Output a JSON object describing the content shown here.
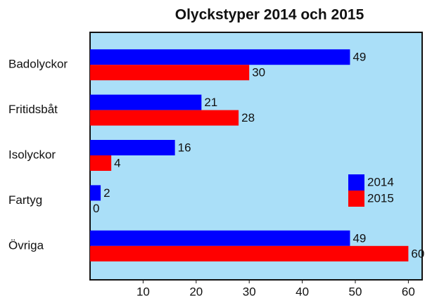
{
  "chart_data": {
    "type": "bar",
    "orientation": "horizontal",
    "title": "Olyckstyper 2014 och 2015",
    "categories": [
      "Badolyckor",
      "Fritidsbåt",
      "Isolyckor",
      "Fartyg",
      "Övriga"
    ],
    "series": [
      {
        "name": "2014",
        "color": "#0000ff",
        "values": [
          49,
          21,
          16,
          2,
          49
        ]
      },
      {
        "name": "2015",
        "color": "#ff0000",
        "values": [
          30,
          28,
          4,
          0,
          60
        ]
      }
    ],
    "xlim": [
      0,
      62.6
    ],
    "xticks": [
      10,
      20,
      30,
      40,
      50,
      60
    ],
    "legend": "right"
  }
}
